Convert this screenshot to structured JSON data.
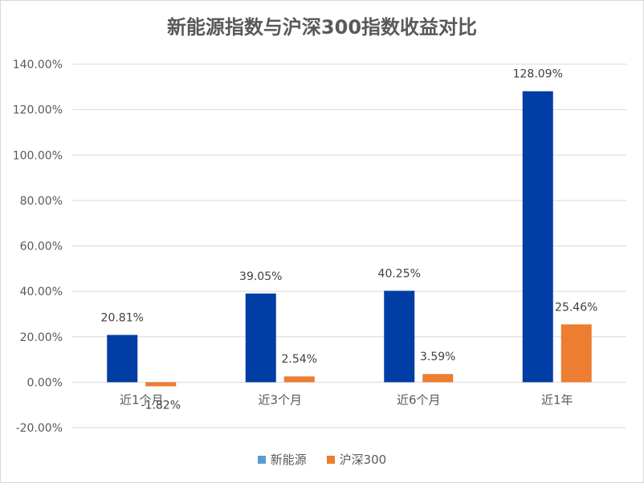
{
  "chart_data": {
    "type": "bar",
    "title": "新能源指数与沪深300指数收益对比",
    "xlabel": "",
    "ylabel": "",
    "categories": [
      "近1个月",
      "近3个月",
      "近6个月",
      "近1年"
    ],
    "series": [
      {
        "name": "新能源",
        "color": "#003DA5",
        "values": [
          20.81,
          39.05,
          40.25,
          128.09
        ],
        "labels": [
          "20.81%",
          "39.05%",
          "40.25%",
          "128.09%"
        ]
      },
      {
        "name": "沪深300",
        "color": "#ED7D31",
        "values": [
          -1.82,
          2.54,
          3.59,
          25.46
        ],
        "labels": [
          "-1.82%",
          "2.54%",
          "3.59%",
          "25.46%"
        ]
      }
    ],
    "ylim": [
      -20,
      140
    ],
    "yticks": [
      -20,
      0,
      20,
      40,
      60,
      80,
      100,
      120,
      140
    ],
    "ytick_labels": [
      "-20.00%",
      "0.00%",
      "20.00%",
      "40.00%",
      "60.00%",
      "80.00%",
      "100.00%",
      "120.00%",
      "140.00%"
    ],
    "grid": true,
    "legend_position": "bottom"
  },
  "legend_colors": [
    "#5B9BD5",
    "#ED7D31"
  ]
}
